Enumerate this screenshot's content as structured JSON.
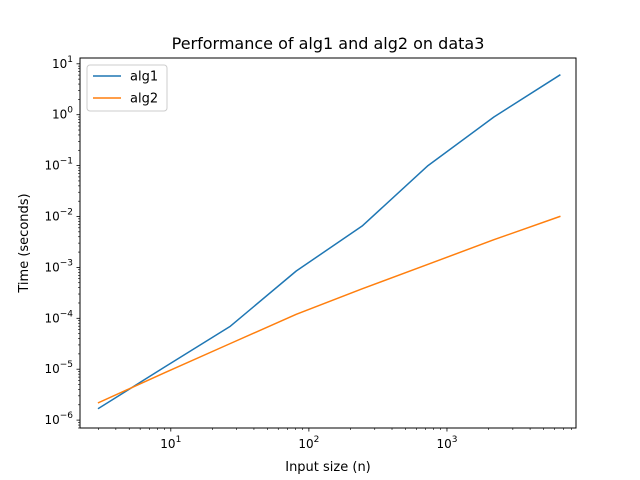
{
  "chart_data": {
    "type": "line",
    "title": "Performance of alg1 and alg2 on data3",
    "xlabel": "Input size (n)",
    "ylabel": "Time (seconds)",
    "xscale": "log",
    "yscale": "log",
    "xlim": [
      2.2,
      8600
    ],
    "ylim": [
      7e-07,
      13
    ],
    "legend": "upper-left",
    "grid": false,
    "x_ticks": [
      {
        "value": 10,
        "base": "10",
        "exp": "1"
      },
      {
        "value": 100,
        "base": "10",
        "exp": "2"
      },
      {
        "value": 1000,
        "base": "10",
        "exp": "3"
      }
    ],
    "y_ticks": [
      {
        "value": 1e-06,
        "base": "10",
        "exp": "−6"
      },
      {
        "value": 1e-05,
        "base": "10",
        "exp": "−5"
      },
      {
        "value": 0.0001,
        "base": "10",
        "exp": "−4"
      },
      {
        "value": 0.001,
        "base": "10",
        "exp": "−3"
      },
      {
        "value": 0.01,
        "base": "10",
        "exp": "−2"
      },
      {
        "value": 0.1,
        "base": "10",
        "exp": "−1"
      },
      {
        "value": 1,
        "base": "10",
        "exp": "0"
      },
      {
        "value": 10,
        "base": "10",
        "exp": "1"
      }
    ],
    "series": [
      {
        "name": "alg1",
        "color": "#1f77b4",
        "x": [
          3,
          9,
          27,
          81,
          243,
          729,
          2187,
          6561
        ],
        "y": [
          1.7e-06,
          1.1e-05,
          7e-05,
          0.00085,
          0.0065,
          0.1,
          0.9,
          6
        ]
      },
      {
        "name": "alg2",
        "color": "#ff7f0e",
        "x": [
          3,
          9,
          27,
          81,
          243,
          729,
          2187,
          6561
        ],
        "y": [
          2.2e-06,
          8.5e-06,
          3.2e-05,
          0.00012,
          0.00038,
          0.00115,
          0.0035,
          0.01
        ]
      }
    ]
  }
}
